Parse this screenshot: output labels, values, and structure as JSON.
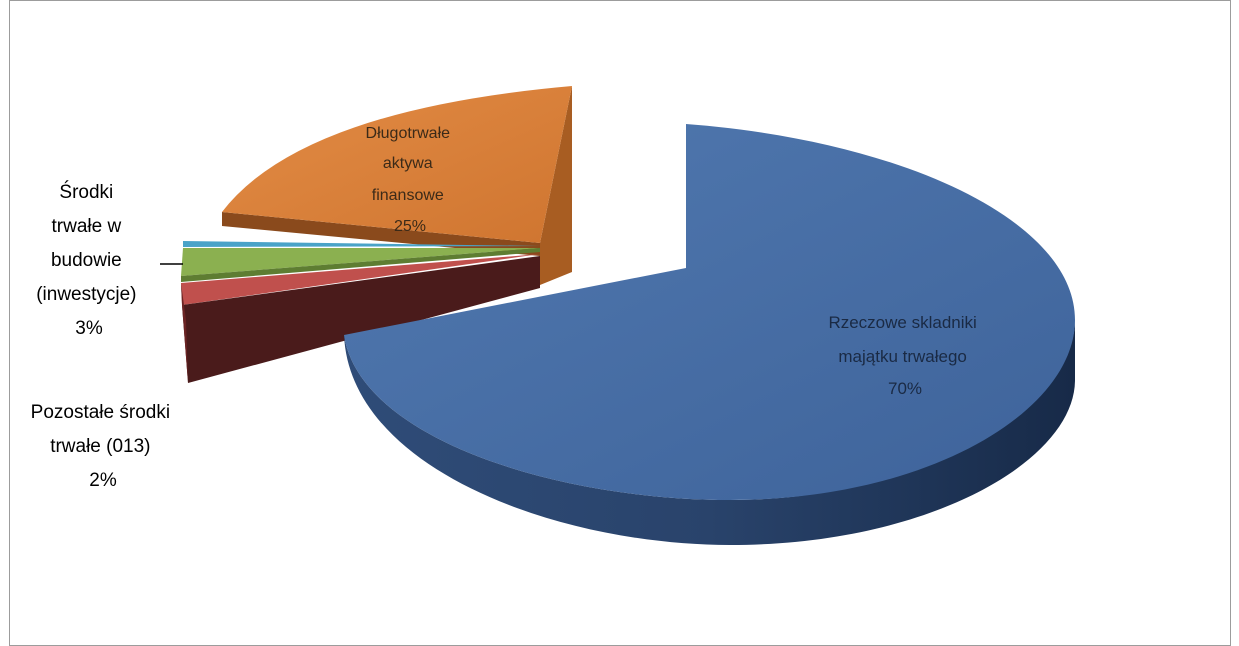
{
  "chart_data": {
    "type": "pie",
    "title": "",
    "view": "3d-exploded",
    "legend": "none",
    "slices": [
      {
        "label_lines": [
          "Rzeczowe skladniki",
          "majątku trwałego",
          "70%"
        ],
        "value": 70,
        "color": "#4a72a8"
      },
      {
        "label_lines": [
          "Pozostałe środki",
          "trwałe (013)",
          "2%"
        ],
        "value": 2,
        "color": "#c0504d"
      },
      {
        "label_lines": [
          "Środki",
          "trwałe w",
          "budowie",
          "(inwestycje)",
          "3%"
        ],
        "value": 3,
        "color": "#8bb050"
      },
      {
        "label_lines": [],
        "value": 0.4,
        "color": "#4aa3c8"
      },
      {
        "label_lines": [
          "Długotrwałe",
          "aktywa",
          "finansowe",
          "25%"
        ],
        "value": 25,
        "color": "#e0823a"
      }
    ]
  }
}
